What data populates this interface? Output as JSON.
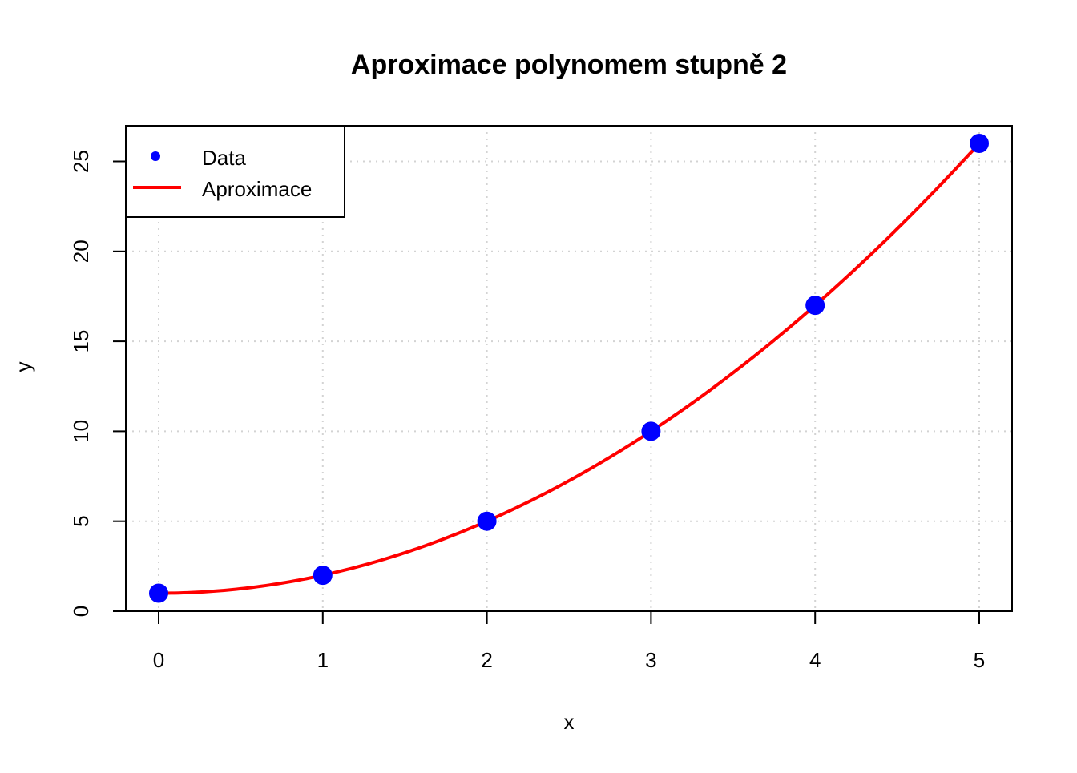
{
  "chart_data": {
    "type": "scatter",
    "title": "Aproximace polynomem stupně 2",
    "xlabel": "x",
    "ylabel": "y",
    "xlim": [
      0,
      5
    ],
    "ylim": [
      0,
      26
    ],
    "x_ticks": [
      0,
      1,
      2,
      3,
      4,
      5
    ],
    "y_ticks": [
      0,
      5,
      10,
      15,
      20,
      25
    ],
    "grid": true,
    "legend_position": "top-left",
    "series": [
      {
        "name": "Data",
        "kind": "points",
        "color": "#0000ff",
        "x": [
          0,
          1,
          2,
          3,
          4,
          5
        ],
        "y": [
          1,
          2,
          5,
          10,
          17,
          26
        ]
      },
      {
        "name": "Aproximace",
        "kind": "line",
        "color": "#ff0000",
        "coefficients": [
          1,
          0,
          1
        ]
      }
    ]
  }
}
